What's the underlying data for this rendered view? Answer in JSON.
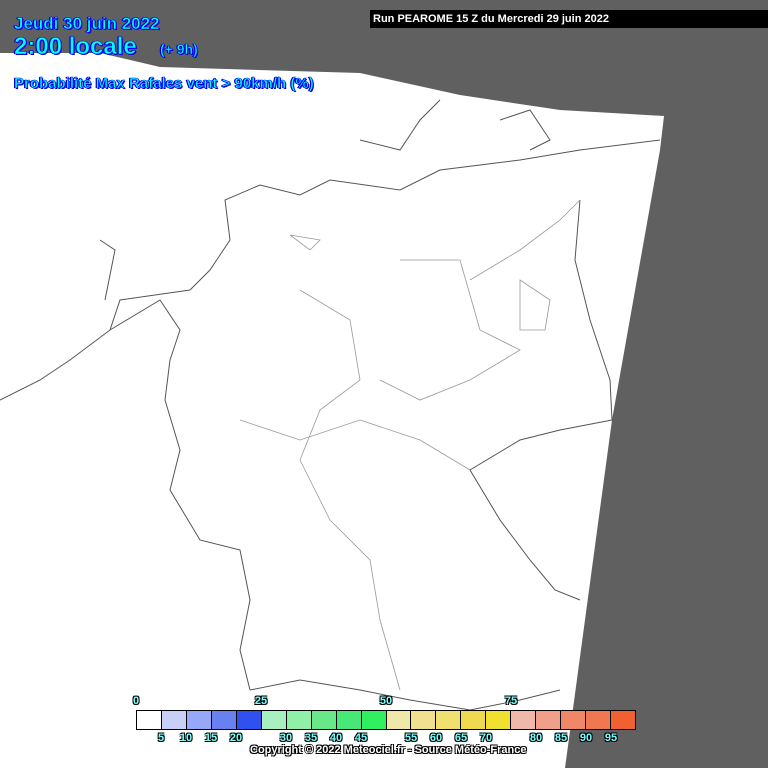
{
  "header": {
    "date": "Jeudi 30 juin 2022",
    "time": "2:00 locale",
    "lead": "(+ 9h)",
    "parameter": "Probabilité Max Rafales vent > 90km/h (%)",
    "run": "Run PEAROME 15 Z du Mercredi 29 juin 2022"
  },
  "colors": {
    "outside_domain": "#606060",
    "domain": "#ffffff",
    "borders": "#555555",
    "title_text": "#00ffff"
  },
  "legend": {
    "colors": [
      "#ffffff",
      "#c8d0f8",
      "#98a8f8",
      "#6880f0",
      "#3050f0",
      "#a8f0c0",
      "#90f0a8",
      "#68e888",
      "#48e878",
      "#30f060",
      "#f0e8a8",
      "#f0e090",
      "#f0e070",
      "#f0d850",
      "#f0e030",
      "#f0b8a8",
      "#f0a088",
      "#f08868",
      "#f07850",
      "#f06030"
    ],
    "top_labels": [
      "0",
      "25",
      "50",
      "75"
    ],
    "bottom_labels": [
      "5",
      "10",
      "15",
      "20",
      "30",
      "35",
      "40",
      "45",
      "55",
      "60",
      "65",
      "70",
      "80",
      "85",
      "90",
      "95"
    ]
  },
  "copyright": "Copyright © 2022 Meteociel.fr - Source Météo-France"
}
